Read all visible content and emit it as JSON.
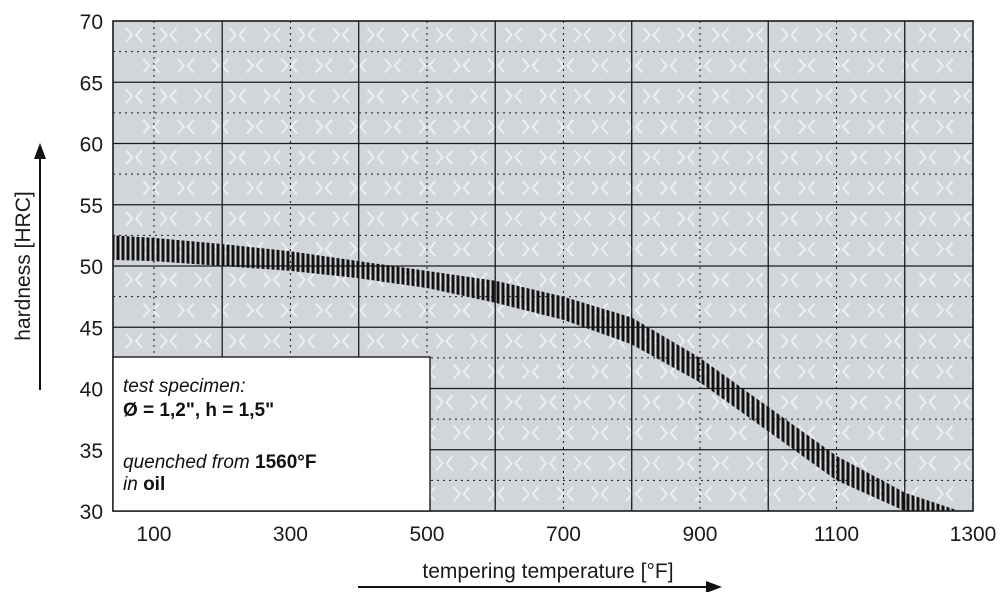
{
  "chart_data": {
    "type": "line",
    "xlabel": "tempering temperature [°F]",
    "ylabel": "hardness [HRC]",
    "xlim": [
      40,
      1300
    ],
    "ylim": [
      30,
      70
    ],
    "x_ticks": [
      100,
      300,
      500,
      700,
      900,
      1100,
      1300
    ],
    "y_ticks": [
      30,
      35,
      40,
      45,
      50,
      55,
      60,
      65,
      70
    ],
    "grid": true,
    "band": {
      "x": [
        40,
        100,
        200,
        300,
        400,
        500,
        600,
        700,
        800,
        900,
        1000,
        1100,
        1200,
        1280
      ],
      "upper": [
        52.5,
        52.3,
        51.8,
        51.2,
        50.4,
        49.6,
        48.8,
        47.5,
        45.8,
        42.5,
        38.5,
        34.5,
        31.5,
        30.0
      ],
      "lower": [
        50.5,
        50.4,
        50.0,
        49.6,
        49.0,
        48.2,
        47.0,
        45.6,
        43.6,
        40.5,
        36.5,
        32.5,
        30.0,
        30.0
      ]
    },
    "colors": {
      "plot_background": "#d2d6db",
      "grid": "#1a1a1a",
      "band": "#111111",
      "watermark": "#eceef0"
    }
  },
  "annotation": {
    "line1": "test specimen:",
    "line2": "Ø = 1,2\", h = 1,5\"",
    "line3_prefix": "quenched from ",
    "line3_value": "1560°F",
    "line4_prefix": "in ",
    "line4_value": "oil"
  }
}
